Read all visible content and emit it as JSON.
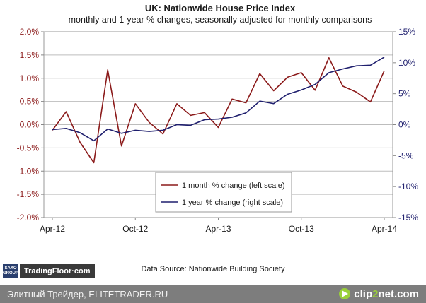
{
  "chart_data": {
    "type": "line",
    "title": "UK: Nationwide House Price Index",
    "subtitle": "monthly and 1-year % changes, seasonally adjusted for monthly comparisons",
    "x": [
      "Apr-12",
      "May-12",
      "Jun-12",
      "Jul-12",
      "Aug-12",
      "Sep-12",
      "Oct-12",
      "Nov-12",
      "Dec-12",
      "Jan-13",
      "Feb-13",
      "Mar-13",
      "Apr-13",
      "May-13",
      "Jun-13",
      "Jul-13",
      "Aug-13",
      "Sep-13",
      "Oct-13",
      "Nov-13",
      "Dec-13",
      "Jan-14",
      "Feb-14",
      "Mar-14",
      "Apr-14"
    ],
    "x_tick_labels": [
      "Apr-12",
      "Oct-12",
      "Apr-13",
      "Oct-13",
      "Apr-14"
    ],
    "left_axis": {
      "ylim": [
        -2.0,
        2.0
      ],
      "ticks": [
        "-2.0%",
        "-1.5%",
        "-1.0%",
        "-0.5%",
        "0.0%",
        "0.5%",
        "1.0%",
        "1.5%",
        "2.0%"
      ]
    },
    "right_axis": {
      "ylim": [
        -15,
        15
      ],
      "ticks": [
        "-15%",
        "-10%",
        "-5%",
        "0%",
        "5%",
        "10%",
        "15%"
      ]
    },
    "series": [
      {
        "name": "1 month % change (left scale)",
        "axis": "left",
        "color": "#8b1a1a",
        "values": [
          -0.12,
          0.28,
          -0.38,
          -0.82,
          1.18,
          -0.46,
          0.45,
          0.05,
          -0.2,
          0.45,
          0.2,
          0.26,
          -0.06,
          0.55,
          0.47,
          1.1,
          0.73,
          1.02,
          1.12,
          0.74,
          1.44,
          0.83,
          0.7,
          0.49,
          1.16
        ]
      },
      {
        "name": "1 year % change (right scale)",
        "axis": "right",
        "color": "#1f1f6e",
        "values": [
          -0.8,
          -0.6,
          -1.3,
          -2.6,
          -0.7,
          -1.4,
          -0.9,
          -1.1,
          -0.9,
          0.0,
          -0.1,
          0.8,
          0.9,
          1.2,
          1.9,
          3.8,
          3.4,
          4.9,
          5.6,
          6.5,
          8.4,
          9.0,
          9.5,
          9.6,
          10.9
        ]
      }
    ],
    "grid": true,
    "legend_position": "bottom-center"
  },
  "source": "Data Source: Nationwide Building Society",
  "logo": {
    "top": "SAXO",
    "bottom": "GROUP",
    "name": "TradingFloor·com"
  },
  "footer": {
    "left": "Элитный Трейдер, ELITETRADER.RU",
    "brand_a": "clip",
    "brand_b": "2",
    "brand_c": "net.com"
  }
}
